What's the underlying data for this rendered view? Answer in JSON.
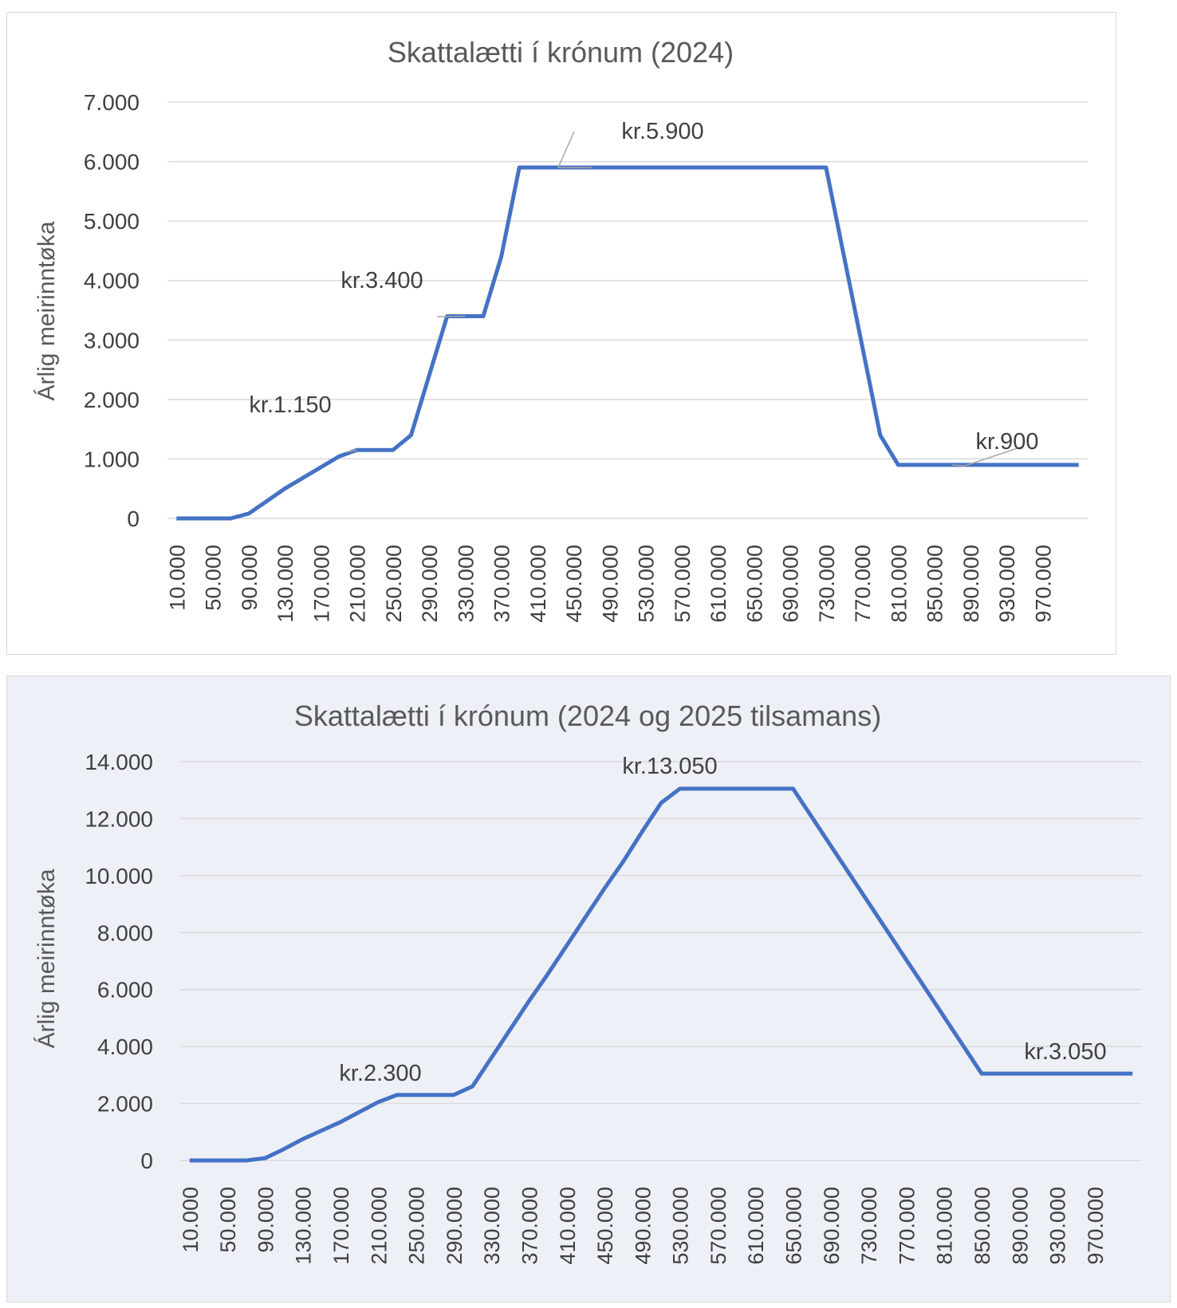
{
  "chart_data": [
    {
      "type": "line",
      "title": "Skattalætti í krónum (2024)",
      "ylabel": "Árlig meirinntøka",
      "xlabel": "",
      "ylim": [
        0,
        7000
      ],
      "yticks": [
        "0",
        "1.000",
        "2.000",
        "3.000",
        "4.000",
        "5.000",
        "6.000",
        "7.000"
      ],
      "categories": [
        "10.000",
        "30.000",
        "50.000",
        "70.000",
        "90.000",
        "110.000",
        "130.000",
        "150.000",
        "170.000",
        "190.000",
        "210.000",
        "230.000",
        "250.000",
        "270.000",
        "290.000",
        "310.000",
        "330.000",
        "350.000",
        "370.000",
        "390.000",
        "410.000",
        "430.000",
        "450.000",
        "470.000",
        "490.000",
        "510.000",
        "530.000",
        "550.000",
        "570.000",
        "590.000",
        "610.000",
        "630.000",
        "650.000",
        "670.000",
        "690.000",
        "710.000",
        "730.000",
        "750.000",
        "770.000",
        "790.000",
        "810.000",
        "830.000",
        "850.000",
        "870.000",
        "890.000",
        "910.000",
        "930.000",
        "950.000",
        "970.000",
        "990.000",
        "1.010.000"
      ],
      "tick_labels_shown": [
        "10.000",
        "50.000",
        "90.000",
        "130.000",
        "170.000",
        "210.000",
        "250.000",
        "290.000",
        "330.000",
        "370.000",
        "410.000",
        "450.000",
        "490.000",
        "530.000",
        "570.000",
        "610.000",
        "650.000",
        "690.000",
        "730.000",
        "770.000",
        "810.000",
        "850.000",
        "890.000",
        "930.000",
        "970.000"
      ],
      "values": [
        0,
        0,
        0,
        0,
        80,
        290,
        500,
        680,
        860,
        1040,
        1150,
        1150,
        1150,
        1400,
        2400,
        3400,
        3400,
        3400,
        4400,
        5900,
        5900,
        5900,
        5900,
        5900,
        5900,
        5900,
        5900,
        5900,
        5900,
        5900,
        5900,
        5900,
        5900,
        5900,
        5900,
        5900,
        5900,
        4400,
        2900,
        1400,
        900,
        900,
        900,
        900,
        900,
        900,
        900,
        900,
        900,
        900,
        900
      ],
      "annotations": [
        {
          "text": "kr.1.150",
          "x": "210.000",
          "y": 1150
        },
        {
          "text": "kr.3.400",
          "x": "330.000",
          "y": 3400
        },
        {
          "text": "kr.5.900",
          "x": "470.000",
          "y": 5900
        },
        {
          "text": "kr.900",
          "x": "870.000",
          "y": 900
        }
      ],
      "grid": true,
      "legend": "none",
      "color": "#4472c4"
    },
    {
      "type": "line",
      "title": "Skattalætti í krónum (2024 og 2025 tilsamans)",
      "ylabel": "Árlig meirinntøka",
      "xlabel": "",
      "ylim": [
        0,
        14000
      ],
      "yticks": [
        "0",
        "2.000",
        "4.000",
        "6.000",
        "8.000",
        "10.000",
        "12.000",
        "14.000"
      ],
      "categories": [
        "10.000",
        "30.000",
        "50.000",
        "70.000",
        "90.000",
        "110.000",
        "130.000",
        "150.000",
        "170.000",
        "190.000",
        "210.000",
        "230.000",
        "250.000",
        "270.000",
        "290.000",
        "310.000",
        "330.000",
        "350.000",
        "370.000",
        "390.000",
        "410.000",
        "430.000",
        "450.000",
        "470.000",
        "490.000",
        "510.000",
        "530.000",
        "550.000",
        "570.000",
        "590.000",
        "610.000",
        "630.000",
        "650.000",
        "670.000",
        "690.000",
        "710.000",
        "730.000",
        "750.000",
        "770.000",
        "790.000",
        "810.000",
        "830.000",
        "850.000",
        "870.000",
        "890.000",
        "910.000",
        "930.000",
        "950.000",
        "970.000",
        "990.000",
        "1.010.000"
      ],
      "tick_labels_shown": [
        "10.000",
        "50.000",
        "90.000",
        "130.000",
        "170.000",
        "210.000",
        "250.000",
        "290.000",
        "330.000",
        "370.000",
        "410.000",
        "450.000",
        "490.000",
        "530.000",
        "570.000",
        "610.000",
        "650.000",
        "690.000",
        "730.000",
        "770.000",
        "810.000",
        "850.000",
        "890.000",
        "930.000",
        "970.000"
      ],
      "values": [
        0,
        0,
        0,
        0,
        80,
        400,
        750,
        1050,
        1350,
        1700,
        2050,
        2300,
        2300,
        2300,
        2300,
        2600,
        3600,
        4600,
        5600,
        6550,
        7550,
        8550,
        9550,
        10500,
        11550,
        12550,
        13050,
        13050,
        13050,
        13050,
        13050,
        13050,
        13050,
        12050,
        11050,
        10050,
        9050,
        8050,
        7050,
        6050,
        5050,
        4050,
        3050,
        3050,
        3050,
        3050,
        3050,
        3050,
        3050,
        3050,
        3050
      ],
      "annotations": [
        {
          "text": "kr.2.300",
          "x": "210.000",
          "y": 2300
        },
        {
          "text": "kr.13.050",
          "x": "530.000",
          "y": 13050
        },
        {
          "text": "kr.3.050",
          "x": "930.000",
          "y": 3050
        }
      ],
      "grid": true,
      "legend": "none",
      "color": "#4472c4"
    }
  ]
}
